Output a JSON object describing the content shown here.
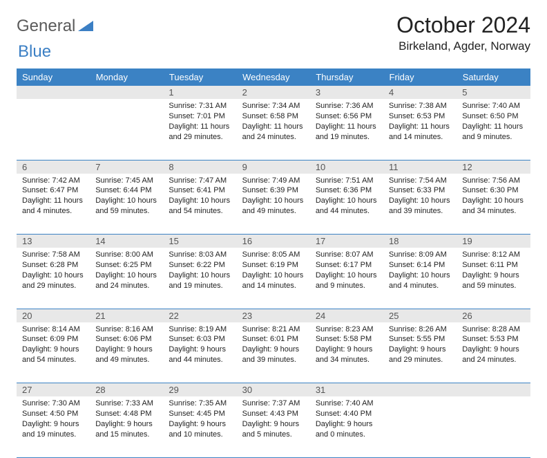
{
  "brand": {
    "part1": "General",
    "part2": "Blue"
  },
  "title": "October 2024",
  "location": "Birkeland, Agder, Norway",
  "colors": {
    "header_bg": "#3b82c4",
    "header_text": "#ffffff",
    "daynum_bg": "#e8e8e8",
    "border": "#3b82c4",
    "logo_gray": "#5a5a5a",
    "logo_blue": "#3b7fc4"
  },
  "day_headers": [
    "Sunday",
    "Monday",
    "Tuesday",
    "Wednesday",
    "Thursday",
    "Friday",
    "Saturday"
  ],
  "weeks": [
    [
      null,
      null,
      {
        "n": "1",
        "sr": "7:31 AM",
        "ss": "7:01 PM",
        "dl": "11 hours and 29 minutes."
      },
      {
        "n": "2",
        "sr": "7:34 AM",
        "ss": "6:58 PM",
        "dl": "11 hours and 24 minutes."
      },
      {
        "n": "3",
        "sr": "7:36 AM",
        "ss": "6:56 PM",
        "dl": "11 hours and 19 minutes."
      },
      {
        "n": "4",
        "sr": "7:38 AM",
        "ss": "6:53 PM",
        "dl": "11 hours and 14 minutes."
      },
      {
        "n": "5",
        "sr": "7:40 AM",
        "ss": "6:50 PM",
        "dl": "11 hours and 9 minutes."
      }
    ],
    [
      {
        "n": "6",
        "sr": "7:42 AM",
        "ss": "6:47 PM",
        "dl": "11 hours and 4 minutes."
      },
      {
        "n": "7",
        "sr": "7:45 AM",
        "ss": "6:44 PM",
        "dl": "10 hours and 59 minutes."
      },
      {
        "n": "8",
        "sr": "7:47 AM",
        "ss": "6:41 PM",
        "dl": "10 hours and 54 minutes."
      },
      {
        "n": "9",
        "sr": "7:49 AM",
        "ss": "6:39 PM",
        "dl": "10 hours and 49 minutes."
      },
      {
        "n": "10",
        "sr": "7:51 AM",
        "ss": "6:36 PM",
        "dl": "10 hours and 44 minutes."
      },
      {
        "n": "11",
        "sr": "7:54 AM",
        "ss": "6:33 PM",
        "dl": "10 hours and 39 minutes."
      },
      {
        "n": "12",
        "sr": "7:56 AM",
        "ss": "6:30 PM",
        "dl": "10 hours and 34 minutes."
      }
    ],
    [
      {
        "n": "13",
        "sr": "7:58 AM",
        "ss": "6:28 PM",
        "dl": "10 hours and 29 minutes."
      },
      {
        "n": "14",
        "sr": "8:00 AM",
        "ss": "6:25 PM",
        "dl": "10 hours and 24 minutes."
      },
      {
        "n": "15",
        "sr": "8:03 AM",
        "ss": "6:22 PM",
        "dl": "10 hours and 19 minutes."
      },
      {
        "n": "16",
        "sr": "8:05 AM",
        "ss": "6:19 PM",
        "dl": "10 hours and 14 minutes."
      },
      {
        "n": "17",
        "sr": "8:07 AM",
        "ss": "6:17 PM",
        "dl": "10 hours and 9 minutes."
      },
      {
        "n": "18",
        "sr": "8:09 AM",
        "ss": "6:14 PM",
        "dl": "10 hours and 4 minutes."
      },
      {
        "n": "19",
        "sr": "8:12 AM",
        "ss": "6:11 PM",
        "dl": "9 hours and 59 minutes."
      }
    ],
    [
      {
        "n": "20",
        "sr": "8:14 AM",
        "ss": "6:09 PM",
        "dl": "9 hours and 54 minutes."
      },
      {
        "n": "21",
        "sr": "8:16 AM",
        "ss": "6:06 PM",
        "dl": "9 hours and 49 minutes."
      },
      {
        "n": "22",
        "sr": "8:19 AM",
        "ss": "6:03 PM",
        "dl": "9 hours and 44 minutes."
      },
      {
        "n": "23",
        "sr": "8:21 AM",
        "ss": "6:01 PM",
        "dl": "9 hours and 39 minutes."
      },
      {
        "n": "24",
        "sr": "8:23 AM",
        "ss": "5:58 PM",
        "dl": "9 hours and 34 minutes."
      },
      {
        "n": "25",
        "sr": "8:26 AM",
        "ss": "5:55 PM",
        "dl": "9 hours and 29 minutes."
      },
      {
        "n": "26",
        "sr": "8:28 AM",
        "ss": "5:53 PM",
        "dl": "9 hours and 24 minutes."
      }
    ],
    [
      {
        "n": "27",
        "sr": "7:30 AM",
        "ss": "4:50 PM",
        "dl": "9 hours and 19 minutes."
      },
      {
        "n": "28",
        "sr": "7:33 AM",
        "ss": "4:48 PM",
        "dl": "9 hours and 15 minutes."
      },
      {
        "n": "29",
        "sr": "7:35 AM",
        "ss": "4:45 PM",
        "dl": "9 hours and 10 minutes."
      },
      {
        "n": "30",
        "sr": "7:37 AM",
        "ss": "4:43 PM",
        "dl": "9 hours and 5 minutes."
      },
      {
        "n": "31",
        "sr": "7:40 AM",
        "ss": "4:40 PM",
        "dl": "9 hours and 0 minutes."
      },
      null,
      null
    ]
  ],
  "labels": {
    "sunrise": "Sunrise:",
    "sunset": "Sunset:",
    "daylight": "Daylight:"
  }
}
